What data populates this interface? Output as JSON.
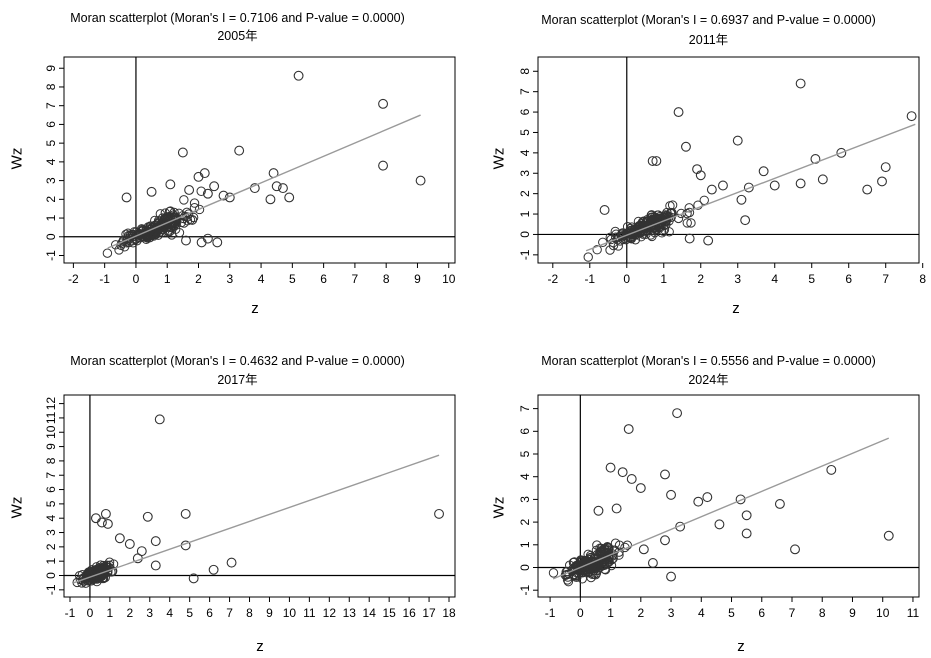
{
  "chart_data": [
    {
      "type": "scatter",
      "title": "Moran scatterplot (Moran's I = 0.7106 and P-value = 0.0000)",
      "subtitle": "2005年",
      "xlabel": "z",
      "ylabel": "Wz",
      "xlim": [
        -2.3,
        10.2
      ],
      "ylim": [
        -1.4,
        9.6
      ],
      "xticks": [
        -2,
        -1,
        0,
        1,
        2,
        3,
        4,
        5,
        6,
        7,
        8,
        9,
        10
      ],
      "yticks": [
        -1,
        0,
        1,
        2,
        3,
        4,
        5,
        6,
        7,
        8,
        9
      ],
      "fit_line": {
        "x": [
          -0.9,
          9.1
        ],
        "y": [
          -0.6,
          6.5
        ]
      },
      "cluster": {
        "x_center": 0.6,
        "x_spread": 1.0,
        "slope": 0.71,
        "noise": 0.45,
        "count": 200
      },
      "points": [
        {
          "x": 5.2,
          "y": 8.6
        },
        {
          "x": 7.9,
          "y": 7.1
        },
        {
          "x": 7.9,
          "y": 3.8
        },
        {
          "x": 9.1,
          "y": 3.0
        },
        {
          "x": 3.3,
          "y": 4.6
        },
        {
          "x": 1.5,
          "y": 4.5
        },
        {
          "x": 4.4,
          "y": 3.4
        },
        {
          "x": 4.5,
          "y": 2.7
        },
        {
          "x": 4.7,
          "y": 2.6
        },
        {
          "x": 4.3,
          "y": 2.0
        },
        {
          "x": 4.9,
          "y": 2.1
        },
        {
          "x": 3.8,
          "y": 2.6
        },
        {
          "x": 2.2,
          "y": 3.4
        },
        {
          "x": 2.0,
          "y": 3.2
        },
        {
          "x": 2.8,
          "y": 2.2
        },
        {
          "x": 2.5,
          "y": 2.7
        },
        {
          "x": 3.0,
          "y": 2.1
        },
        {
          "x": 1.1,
          "y": 2.8
        },
        {
          "x": -0.3,
          "y": 2.1
        },
        {
          "x": 0.5,
          "y": 2.4
        },
        {
          "x": 1.7,
          "y": 2.5
        },
        {
          "x": 2.3,
          "y": 2.3
        },
        {
          "x": 2.6,
          "y": -0.3
        },
        {
          "x": 2.1,
          "y": -0.3
        },
        {
          "x": 1.6,
          "y": -0.2
        },
        {
          "x": 2.3,
          "y": -0.1
        },
        {
          "x": 1.8,
          "y": 0.9
        }
      ]
    },
    {
      "type": "scatter",
      "title": "Moran scatterplot (Moran's I = 0.6937 and P-value = 0.0000)",
      "subtitle": "2011年",
      "xlabel": "z",
      "ylabel": "Wz",
      "xlim": [
        -2.4,
        7.9
      ],
      "ylim": [
        -1.4,
        8.7
      ],
      "xticks": [
        -2,
        -1,
        0,
        1,
        2,
        3,
        4,
        5,
        6,
        7,
        8
      ],
      "yticks": [
        -1,
        0,
        1,
        2,
        3,
        4,
        5,
        6,
        7,
        8
      ],
      "fit_line": {
        "x": [
          -1.1,
          7.8
        ],
        "y": [
          -0.8,
          5.4
        ]
      },
      "cluster": {
        "x_center": 0.5,
        "x_spread": 0.9,
        "slope": 0.69,
        "noise": 0.45,
        "count": 200
      },
      "points": [
        {
          "x": 4.7,
          "y": 7.4
        },
        {
          "x": 1.4,
          "y": 6.0
        },
        {
          "x": 7.7,
          "y": 5.8
        },
        {
          "x": 3.0,
          "y": 4.6
        },
        {
          "x": 1.6,
          "y": 4.3
        },
        {
          "x": 5.8,
          "y": 4.0
        },
        {
          "x": 5.1,
          "y": 3.7
        },
        {
          "x": 0.7,
          "y": 3.6
        },
        {
          "x": 0.8,
          "y": 3.6
        },
        {
          "x": 7.0,
          "y": 3.3
        },
        {
          "x": 3.7,
          "y": 3.1
        },
        {
          "x": 1.9,
          "y": 3.2
        },
        {
          "x": 5.3,
          "y": 2.7
        },
        {
          "x": 6.9,
          "y": 2.6
        },
        {
          "x": 4.7,
          "y": 2.5
        },
        {
          "x": 6.5,
          "y": 2.2
        },
        {
          "x": 4.0,
          "y": 2.4
        },
        {
          "x": 3.3,
          "y": 2.3
        },
        {
          "x": 2.6,
          "y": 2.4
        },
        {
          "x": 3.1,
          "y": 1.7
        },
        {
          "x": 3.2,
          "y": 0.7
        },
        {
          "x": 2.3,
          "y": 2.2
        },
        {
          "x": 1.7,
          "y": -0.2
        },
        {
          "x": 2.2,
          "y": -0.3
        },
        {
          "x": 2.0,
          "y": 2.9
        },
        {
          "x": -0.6,
          "y": 1.2
        }
      ]
    },
    {
      "type": "scatter",
      "title": "Moran scatterplot (Moran's I = 0.4632 and P-value = 0.0000)",
      "subtitle": "2017年",
      "xlabel": "z",
      "ylabel": "Wz",
      "xlim": [
        -1.3,
        18.3
      ],
      "ylim": [
        -1.5,
        12.6
      ],
      "xticks": [
        -1,
        0,
        1,
        2,
        3,
        4,
        5,
        6,
        7,
        8,
        9,
        10,
        11,
        12,
        13,
        14,
        15,
        16,
        17,
        18
      ],
      "yticks": [
        -1,
        0,
        1,
        2,
        3,
        4,
        5,
        6,
        7,
        8,
        9,
        10,
        11,
        12
      ],
      "fit_line": {
        "x": [
          -0.8,
          17.5
        ],
        "y": [
          -0.5,
          8.4
        ]
      },
      "cluster": {
        "x_center": 0.3,
        "x_spread": 0.6,
        "slope": 0.46,
        "noise": 0.5,
        "count": 190
      },
      "points": [
        {
          "x": 3.5,
          "y": 10.9
        },
        {
          "x": 17.5,
          "y": 4.3
        },
        {
          "x": 4.8,
          "y": 4.3
        },
        {
          "x": 2.9,
          "y": 4.1
        },
        {
          "x": 0.8,
          "y": 4.3
        },
        {
          "x": 0.3,
          "y": 4.0
        },
        {
          "x": 0.6,
          "y": 3.7
        },
        {
          "x": 0.9,
          "y": 3.6
        },
        {
          "x": 3.3,
          "y": 2.4
        },
        {
          "x": 4.8,
          "y": 2.1
        },
        {
          "x": 7.1,
          "y": 0.9
        },
        {
          "x": 6.2,
          "y": 0.4
        },
        {
          "x": 5.2,
          "y": -0.2
        },
        {
          "x": 3.3,
          "y": 0.7
        },
        {
          "x": 2.6,
          "y": 1.7
        },
        {
          "x": 2.0,
          "y": 2.2
        },
        {
          "x": 1.5,
          "y": 2.6
        },
        {
          "x": 2.4,
          "y": 1.2
        }
      ]
    },
    {
      "type": "scatter",
      "title": "Moran scatterplot (Moran's I = 0.5556 and P-value = 0.0000)",
      "subtitle": "2024年",
      "xlabel": "z",
      "ylabel": "Wz",
      "xlim": [
        -1.4,
        11.2
      ],
      "ylim": [
        -1.3,
        7.6
      ],
      "xticks": [
        -1,
        0,
        1,
        2,
        3,
        4,
        5,
        6,
        7,
        8,
        9,
        10,
        11
      ],
      "yticks": [
        -1,
        0,
        1,
        2,
        3,
        4,
        5,
        6,
        7
      ],
      "fit_line": {
        "x": [
          -0.9,
          10.2
        ],
        "y": [
          -0.5,
          5.7
        ]
      },
      "cluster": {
        "x_center": 0.4,
        "x_spread": 0.8,
        "slope": 0.56,
        "noise": 0.55,
        "count": 210
      },
      "points": [
        {
          "x": 3.2,
          "y": 6.8
        },
        {
          "x": 1.6,
          "y": 6.1
        },
        {
          "x": 1.0,
          "y": 4.4
        },
        {
          "x": 8.3,
          "y": 4.3
        },
        {
          "x": 1.4,
          "y": 4.2
        },
        {
          "x": 2.8,
          "y": 4.1
        },
        {
          "x": 1.7,
          "y": 3.9
        },
        {
          "x": 2.0,
          "y": 3.5
        },
        {
          "x": 3.0,
          "y": 3.2
        },
        {
          "x": 4.2,
          "y": 3.1
        },
        {
          "x": 3.9,
          "y": 2.9
        },
        {
          "x": 5.3,
          "y": 3.0
        },
        {
          "x": 6.6,
          "y": 2.8
        },
        {
          "x": 5.5,
          "y": 2.3
        },
        {
          "x": 4.6,
          "y": 1.9
        },
        {
          "x": 3.3,
          "y": 1.8
        },
        {
          "x": 5.5,
          "y": 1.5
        },
        {
          "x": 10.2,
          "y": 1.4
        },
        {
          "x": 7.1,
          "y": 0.8
        },
        {
          "x": 3.0,
          "y": -0.4
        },
        {
          "x": 2.4,
          "y": 0.2
        },
        {
          "x": 2.1,
          "y": 0.8
        },
        {
          "x": 2.8,
          "y": 1.2
        },
        {
          "x": 0.6,
          "y": 2.5
        },
        {
          "x": 1.2,
          "y": 2.6
        }
      ]
    }
  ]
}
